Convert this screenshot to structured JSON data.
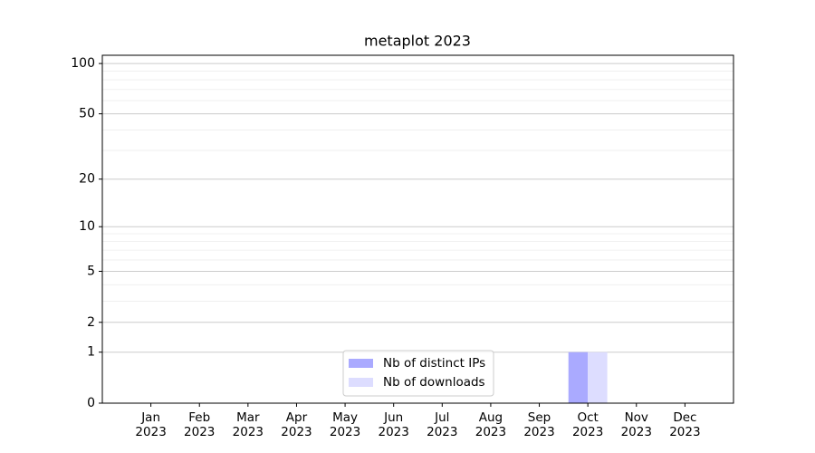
{
  "chart_data": {
    "type": "bar",
    "title": "metaplot 2023",
    "categories": [
      "Jan\n2023",
      "Feb\n2023",
      "Mar\n2023",
      "Apr\n2023",
      "May\n2023",
      "Jun\n2023",
      "Jul\n2023",
      "Aug\n2023",
      "Sep\n2023",
      "Oct\n2023",
      "Nov\n2023",
      "Dec\n2023"
    ],
    "series": [
      {
        "name": "Nb of distinct IPs",
        "color": "#aaaaff",
        "values": [
          0,
          0,
          0,
          0,
          0,
          0,
          0,
          0,
          0,
          1,
          0,
          0
        ]
      },
      {
        "name": "Nb of downloads",
        "color": "#ddddff",
        "values": [
          0,
          0,
          0,
          0,
          0,
          0,
          0,
          0,
          0,
          1,
          0,
          0
        ]
      }
    ],
    "yscale": "log1p",
    "ylim": [
      0,
      112
    ],
    "yticks": [
      0,
      1,
      2,
      5,
      10,
      20,
      50,
      100
    ],
    "minor_yticks": [
      3,
      4,
      6,
      7,
      8,
      9,
      30,
      40,
      60,
      70,
      80,
      90
    ],
    "grid": true,
    "legend": "lower center"
  }
}
